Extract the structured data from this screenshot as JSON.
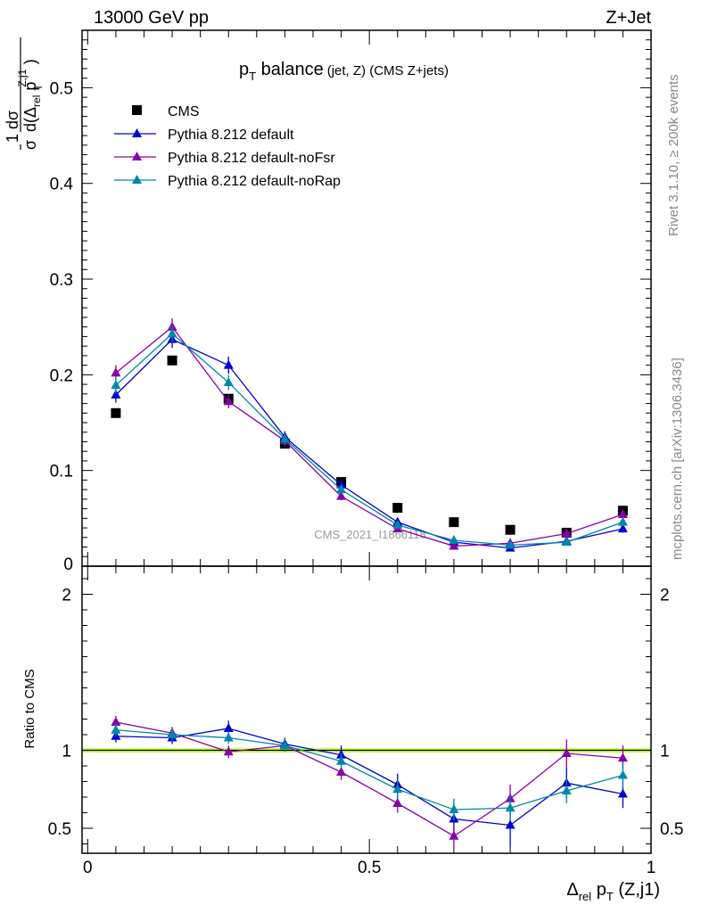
{
  "header": {
    "left": "13000 GeV pp",
    "right": "Z+Jet"
  },
  "title": {
    "main": "p",
    "main_sub": "T",
    "main_rest": " balance",
    "small": "(jet, Z) (CMS Z+jets)"
  },
  "side_labels": {
    "rivet": "Rivet 3.1.10, ≥ 200k events",
    "mcplots": "mcplots.cern.ch [arXiv:1306.3436]"
  },
  "watermark": "CMS_2021_I1866118",
  "ylabel": {
    "numerator": "1   dσ",
    "prefix": "σ",
    "denom": "d(Δ",
    "denom_sub": "rel",
    "denom_rest": " p",
    "denom_sup": "Z,j1",
    "denom_sub2": "T",
    "denom_close": ")"
  },
  "ratio_ylabel": "Ratio to CMS",
  "xlabel": {
    "delta": "Δ",
    "sub1": "rel",
    "p": " p",
    "sub2": "T",
    "rest": " (Z,j1)"
  },
  "legend": [
    {
      "name": "CMS",
      "color": "#000000",
      "marker": "square"
    },
    {
      "name": "Pythia 8.212 default",
      "color": "#0000cc",
      "marker": "triangle"
    },
    {
      "name": "Pythia 8.212 default-noFsr",
      "color": "#8800aa",
      "marker": "triangle"
    },
    {
      "name": "Pythia 8.212 default-noRap",
      "color": "#0088aa",
      "marker": "triangle"
    }
  ],
  "chart_data": [
    {
      "type": "scatter",
      "panel": "main",
      "title": "pT balance (jet, Z) (CMS Z+jets)",
      "xlabel": "Δrel pT (Z,j1)",
      "ylabel": "1/σ dσ/d(Δrel pT^{Z,j1})",
      "xlim": [
        -0.01,
        1.0
      ],
      "ylim": [
        0.0,
        0.56
      ],
      "y_ticks": [
        0.1,
        0.2,
        0.3,
        0.4,
        0.5
      ],
      "y_tick_labels": [
        "0.1",
        "0.2",
        "0.3",
        "0.4",
        "0.5"
      ],
      "y_zero_label": "0",
      "x": [
        0.05,
        0.15,
        0.25,
        0.35,
        0.45,
        0.55,
        0.65,
        0.75,
        0.85,
        0.95
      ],
      "series": [
        {
          "name": "CMS",
          "values": [
            0.16,
            0.215,
            0.175,
            0.128,
            0.088,
            0.061,
            0.046,
            0.038,
            0.035,
            0.058
          ],
          "errors": [
            0,
            0,
            0,
            0,
            0,
            0,
            0,
            0,
            0,
            0
          ]
        },
        {
          "name": "Pythia 8.212 default",
          "values": [
            0.179,
            0.237,
            0.21,
            0.135,
            0.085,
            0.046,
            0.025,
            0.019,
            0.026,
            0.039
          ],
          "errors": [
            0.008,
            0.009,
            0.009,
            0.006,
            0.005,
            0.004,
            0.003,
            0.003,
            0.003,
            0.004
          ]
        },
        {
          "name": "Pythia 8.212 default-noFsr",
          "values": [
            0.202,
            0.25,
            0.172,
            0.131,
            0.073,
            0.039,
            0.021,
            0.024,
            0.034,
            0.054
          ],
          "errors": [
            0.008,
            0.009,
            0.007,
            0.006,
            0.004,
            0.003,
            0.003,
            0.003,
            0.003,
            0.004
          ]
        },
        {
          "name": "Pythia 8.212 default-noRap",
          "values": [
            0.189,
            0.243,
            0.192,
            0.133,
            0.08,
            0.043,
            0.027,
            0.022,
            0.025,
            0.046
          ],
          "errors": [
            0.008,
            0.009,
            0.008,
            0.006,
            0.005,
            0.004,
            0.003,
            0.003,
            0.003,
            0.004
          ]
        }
      ]
    },
    {
      "type": "line",
      "panel": "ratio",
      "ylabel": "Ratio to CMS",
      "xlim": [
        -0.01,
        1.0
      ],
      "ylim": [
        0.34,
        2.18
      ],
      "x_ticks": [
        0,
        0.5,
        1
      ],
      "x_tick_labels": [
        "0",
        "0.5",
        "1"
      ],
      "y_ticks": [
        0.5,
        1,
        2
      ],
      "y_tick_labels": [
        "0.5",
        "1",
        "2"
      ],
      "x": [
        0.05,
        0.15,
        0.25,
        0.35,
        0.45,
        0.55,
        0.65,
        0.75,
        0.85,
        0.95
      ],
      "reference": {
        "name": "CMS",
        "value": 1.0,
        "band": [
          0.985,
          1.015
        ],
        "band_color": "#ccff55",
        "line_color": "#000000"
      },
      "series": [
        {
          "name": "Pythia 8.212 default",
          "values": [
            1.09,
            1.08,
            1.14,
            1.04,
            0.97,
            0.78,
            0.56,
            0.52,
            0.79,
            0.72
          ],
          "errors": [
            0.04,
            0.04,
            0.05,
            0.04,
            0.06,
            0.07,
            0.09,
            0.14,
            0.1,
            0.09
          ]
        },
        {
          "name": "Pythia 8.212 default-noFsr",
          "values": [
            1.18,
            1.11,
            0.99,
            1.03,
            0.86,
            0.66,
            0.45,
            0.69,
            0.98,
            0.95
          ],
          "errors": [
            0.04,
            0.04,
            0.04,
            0.04,
            0.05,
            0.06,
            0.07,
            0.09,
            0.09,
            0.08
          ]
        },
        {
          "name": "Pythia 8.212 default-noRap",
          "values": [
            1.13,
            1.1,
            1.08,
            1.03,
            0.93,
            0.75,
            0.62,
            0.63,
            0.74,
            0.84
          ],
          "errors": [
            0.04,
            0.04,
            0.04,
            0.04,
            0.05,
            0.06,
            0.07,
            0.08,
            0.08,
            0.08
          ]
        }
      ]
    }
  ]
}
